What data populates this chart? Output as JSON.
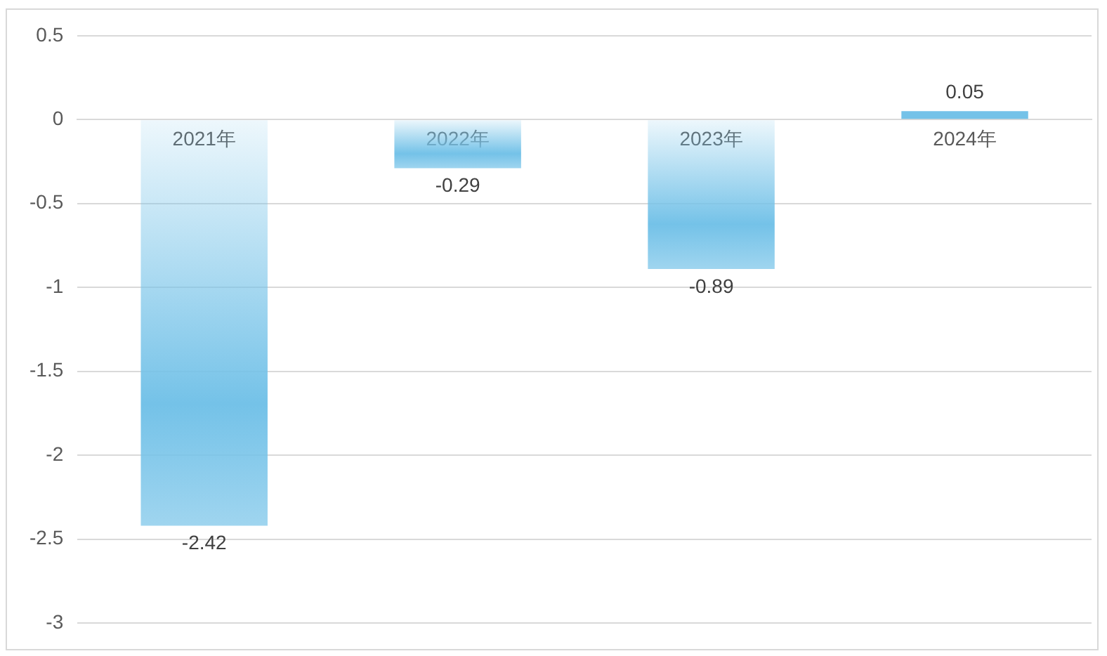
{
  "chart_data": {
    "type": "bar",
    "categories": [
      "2021年",
      "2022年",
      "2023年",
      "2024年"
    ],
    "values": [
      -2.42,
      -0.29,
      -0.89,
      0.05
    ],
    "color": "#74c2e8",
    "ylim": [
      -3,
      0.5
    ],
    "yticks": [
      -3,
      -2.5,
      -2,
      -1.5,
      -1,
      -0.5,
      0,
      0.5
    ],
    "grid": "y",
    "data_labels": true
  }
}
